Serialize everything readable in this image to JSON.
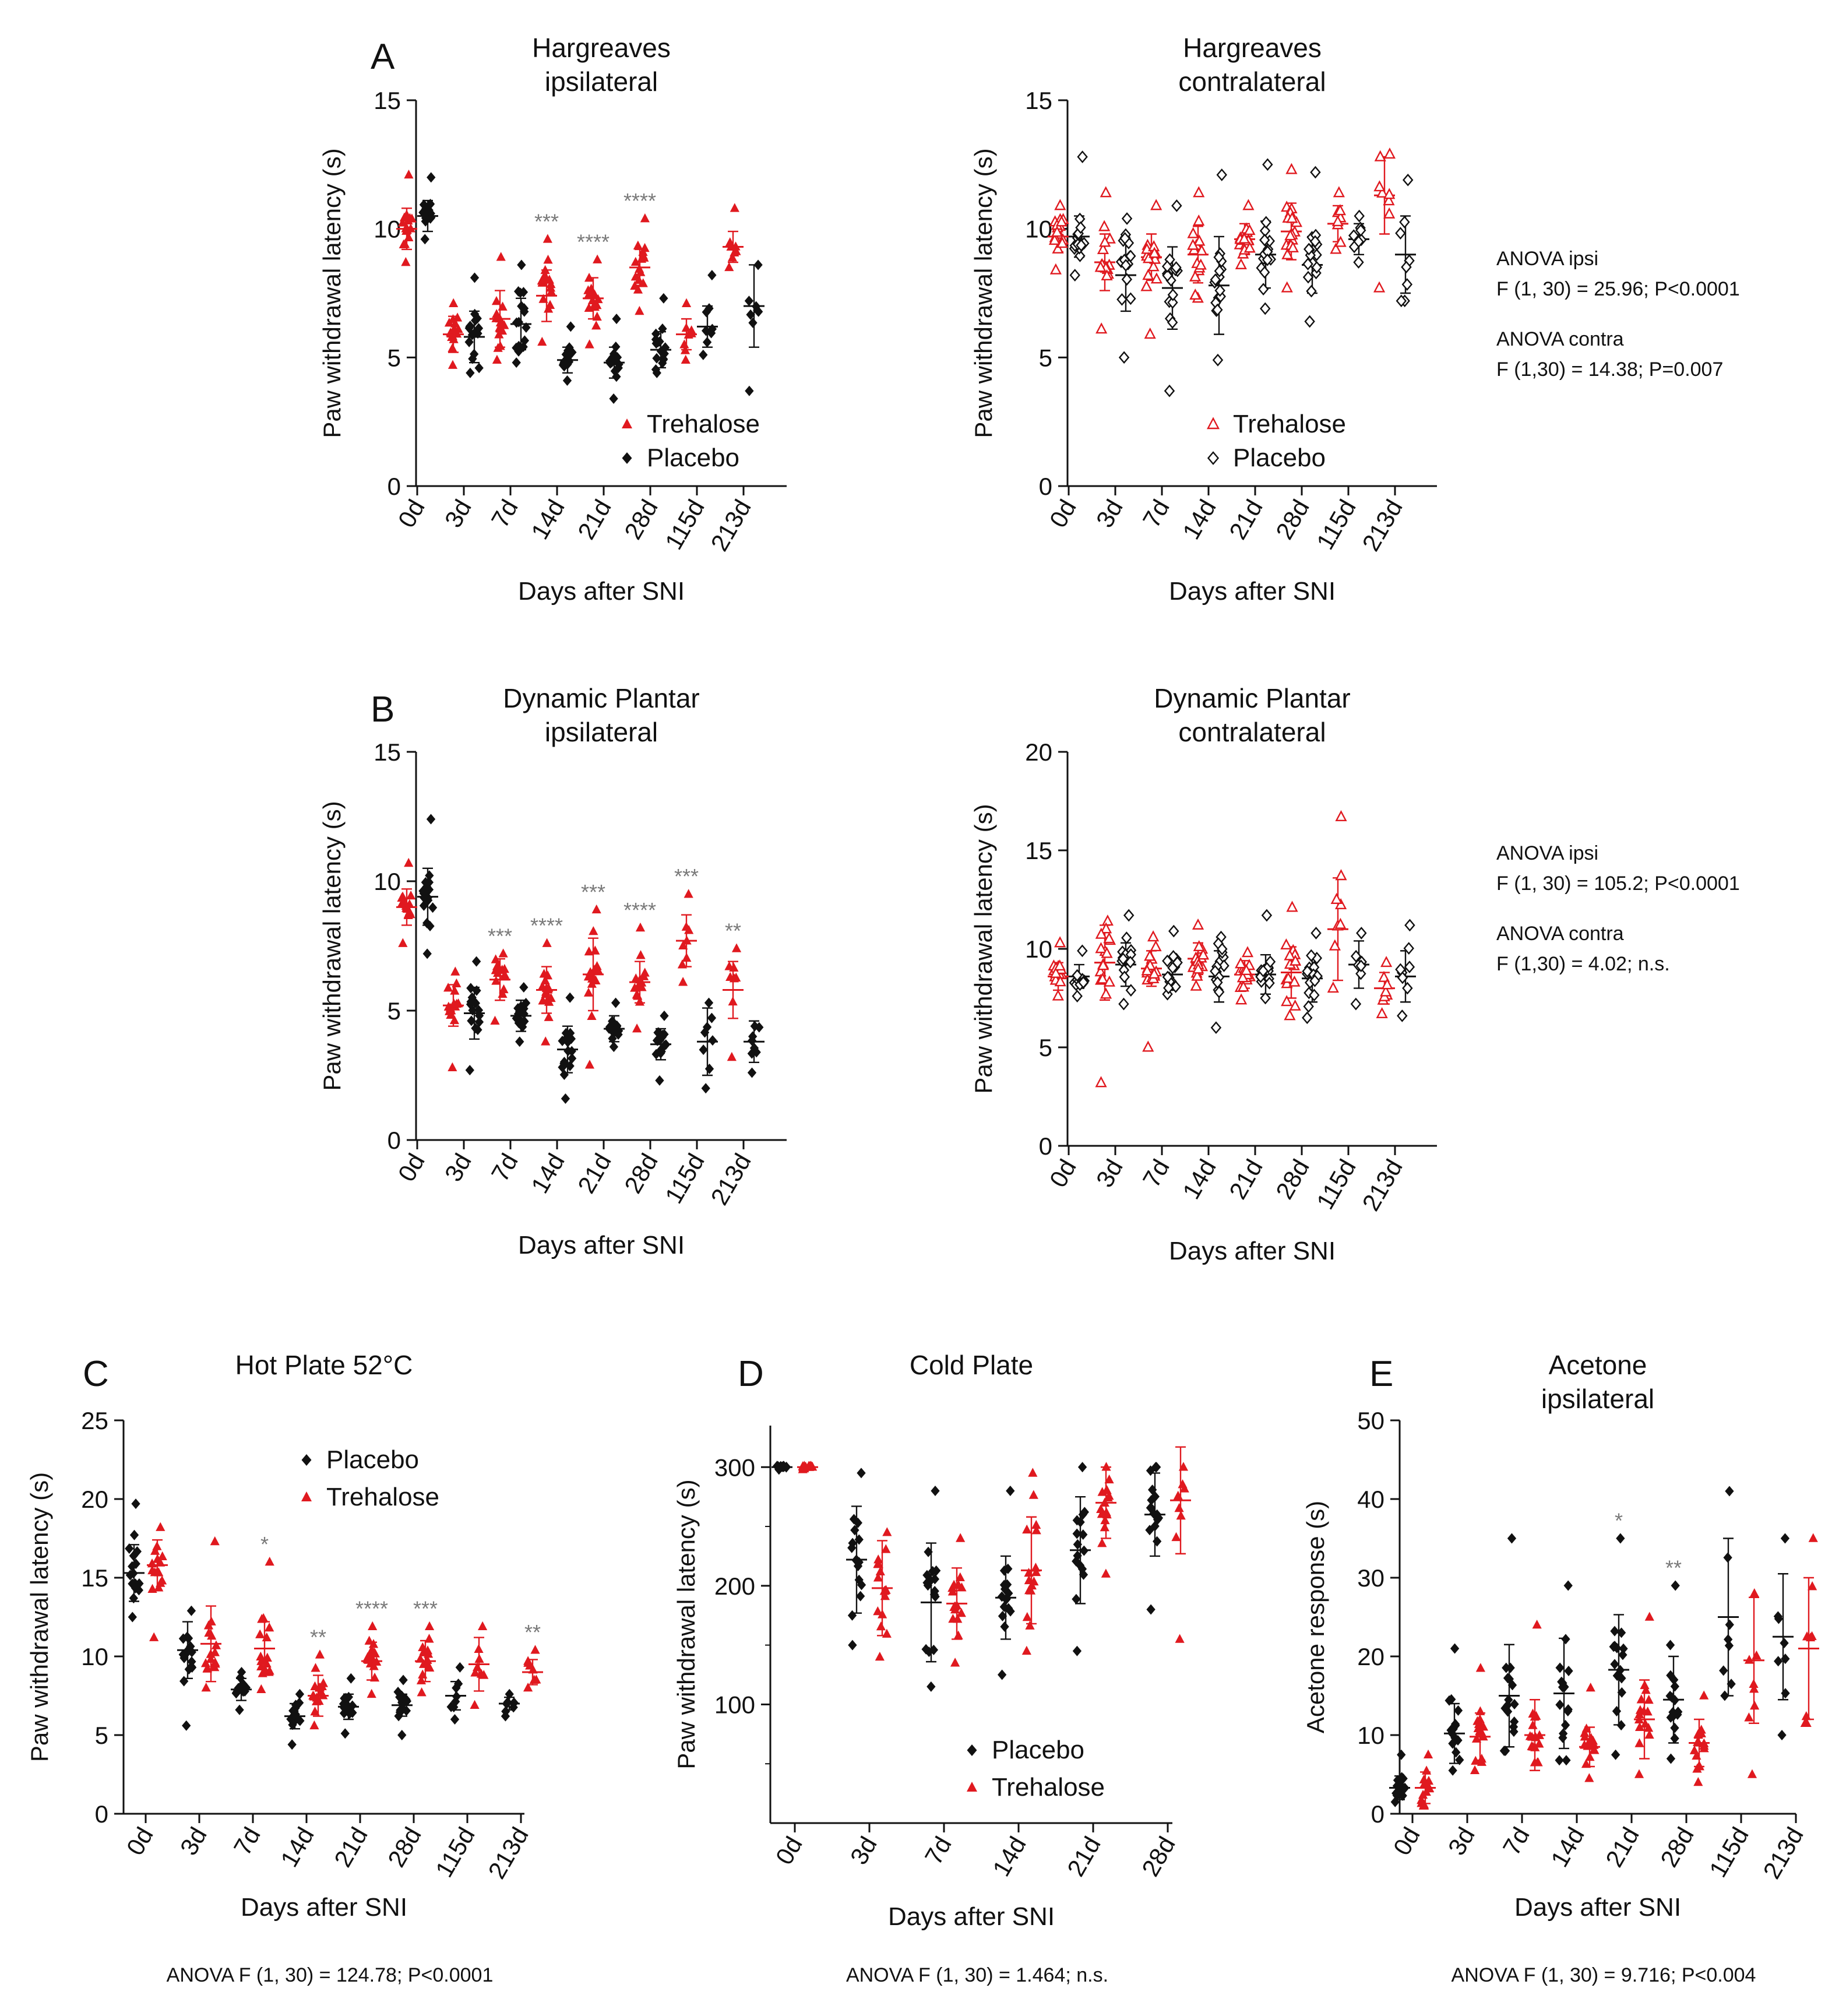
{
  "colors": {
    "trehalose": "#e0191f",
    "placebo": "#111111",
    "significance": "#7a7a7a"
  },
  "shared": {
    "xlabel": "Days after SNI"
  },
  "notes": {
    "A": {
      "ipsi_title": "ANOVA ipsi",
      "ipsi_stat": "F (1, 30) = 25.96; P<0.0001",
      "contra_title": "ANOVA contra",
      "contra_stat": "F (1,30) = 14.38; P=0.007"
    },
    "B": {
      "ipsi_title": "ANOVA ipsi",
      "ipsi_stat": "F (1, 30) = 105.2; P<0.0001",
      "contra_title": "ANOVA contra",
      "contra_stat": "F (1,30) = 4.02; n.s."
    }
  },
  "chart_data": [
    {
      "id": "A1",
      "panel_letter": "A",
      "type": "scatter",
      "title": "Hargreaves",
      "subtitle": "ipsilateral",
      "xlabel": "Days after SNI",
      "ylabel": "Paw withdrawal latency (s)",
      "ylim": [
        0,
        15
      ],
      "yticks": [
        0,
        5,
        10,
        15
      ],
      "categories": [
        "0d",
        "3d",
        "7d",
        "14d",
        "21d",
        "28d",
        "115d",
        "213d"
      ],
      "legend": {
        "entries": [
          "Trehalose",
          "Placebo"
        ],
        "placement": "lower-right"
      },
      "series": [
        {
          "name": "Trehalose",
          "marker": "filled-triangle",
          "mean": [
            10.0,
            5.9,
            6.5,
            7.4,
            7.3,
            8.5,
            5.9,
            9.3
          ],
          "sd": [
            0.8,
            0.7,
            1.1,
            1.0,
            0.8,
            0.7,
            0.6,
            0.6
          ],
          "n": [
            16,
            16,
            16,
            16,
            16,
            16,
            8,
            8
          ],
          "min": [
            8.7,
            4.7,
            4.9,
            5.6,
            5.5,
            6.8,
            4.9,
            8.5
          ],
          "max": [
            12.1,
            7.1,
            8.9,
            9.6,
            8.8,
            10.4,
            7.1,
            10.8
          ],
          "significance": [
            "",
            "",
            "",
            "***",
            "****",
            "****",
            "",
            ""
          ]
        },
        {
          "name": "Placebo",
          "marker": "filled-diamond",
          "mean": [
            10.5,
            5.8,
            6.3,
            4.9,
            4.8,
            5.3,
            6.2,
            7.0
          ],
          "sd": [
            0.6,
            1.0,
            1.0,
            0.5,
            0.6,
            0.7,
            0.8,
            1.6
          ],
          "n": [
            16,
            16,
            16,
            16,
            16,
            16,
            8,
            8
          ],
          "min": [
            9.6,
            4.4,
            4.8,
            4.1,
            3.4,
            4.4,
            5.1,
            3.7
          ],
          "max": [
            12.0,
            8.1,
            8.6,
            6.2,
            6.5,
            7.3,
            8.2,
            8.6
          ],
          "significance": [
            "",
            "",
            "",
            "",
            "",
            "",
            "",
            ""
          ]
        }
      ]
    },
    {
      "id": "A2",
      "type": "scatter",
      "title": "Hargreaves",
      "subtitle": "contralateral",
      "xlabel": "Days after SNI",
      "ylabel": "Paw withdrawal latency (s)",
      "ylim": [
        0,
        15
      ],
      "yticks": [
        0,
        5,
        10,
        15
      ],
      "categories": [
        "0d",
        "3d",
        "7d",
        "14d",
        "21d",
        "28d",
        "115d",
        "213d"
      ],
      "legend": {
        "entries": [
          "Trehalose",
          "Placebo"
        ],
        "placement": "lower-center"
      },
      "series": [
        {
          "name": "Trehalose",
          "marker": "open-triangle",
          "mean": [
            9.7,
            8.7,
            8.9,
            9.0,
            9.6,
            9.9,
            10.2,
            11.3
          ],
          "sd": [
            0.6,
            1.1,
            0.9,
            1.1,
            0.6,
            1.1,
            0.7,
            1.5
          ],
          "n": [
            16,
            16,
            16,
            16,
            16,
            16,
            8,
            8
          ],
          "min": [
            8.4,
            6.1,
            5.9,
            7.3,
            8.6,
            7.7,
            9.2,
            7.7
          ],
          "max": [
            10.9,
            11.4,
            10.9,
            11.4,
            10.9,
            12.3,
            11.4,
            12.9
          ],
          "significance": [
            "",
            "",
            "",
            "",
            "",
            "",
            "",
            ""
          ]
        },
        {
          "name": "Placebo",
          "marker": "open-diamond",
          "mean": [
            9.7,
            8.2,
            7.7,
            7.8,
            9.0,
            8.6,
            9.6,
            9.0
          ],
          "sd": [
            0.8,
            1.4,
            1.6,
            1.9,
            1.3,
            1.1,
            0.6,
            1.5
          ],
          "n": [
            16,
            16,
            16,
            16,
            16,
            16,
            8,
            8
          ],
          "min": [
            8.2,
            5.0,
            3.7,
            4.9,
            6.9,
            6.4,
            8.7,
            7.2
          ],
          "max": [
            12.8,
            10.4,
            10.9,
            12.1,
            12.5,
            12.2,
            10.5,
            11.9
          ],
          "significance": [
            "",
            "",
            "",
            "",
            "",
            "",
            "",
            ""
          ]
        }
      ]
    },
    {
      "id": "B1",
      "panel_letter": "B",
      "type": "scatter",
      "title": "Dynamic Plantar",
      "subtitle": "ipsilateral",
      "xlabel": "Days after SNI",
      "ylabel": "Paw withdrawal latency (s)",
      "ylim": [
        0,
        15
      ],
      "yticks": [
        0,
        5,
        10,
        15
      ],
      "categories": [
        "0d",
        "3d",
        "7d",
        "14d",
        "21d",
        "28d",
        "115d",
        "213d"
      ],
      "legend": null,
      "series": [
        {
          "name": "Trehalose",
          "marker": "filled-triangle",
          "mean": [
            9.0,
            5.2,
            6.2,
            5.8,
            6.4,
            6.1,
            7.7,
            5.8
          ],
          "sd": [
            0.7,
            0.8,
            0.8,
            0.9,
            1.4,
            0.8,
            1.0,
            1.1
          ],
          "n": [
            16,
            16,
            16,
            16,
            16,
            16,
            8,
            8
          ],
          "min": [
            7.6,
            2.8,
            4.6,
            3.8,
            2.9,
            4.3,
            6.1,
            3.2
          ],
          "max": [
            10.7,
            6.5,
            7.2,
            7.6,
            8.9,
            8.2,
            9.5,
            7.4
          ],
          "significance": [
            "",
            "",
            "***",
            "****",
            "***",
            "****",
            "***",
            "**"
          ]
        },
        {
          "name": "Placebo",
          "marker": "filled-diamond",
          "mean": [
            9.4,
            4.9,
            4.8,
            3.5,
            4.3,
            3.7,
            3.8,
            3.8
          ],
          "sd": [
            1.1,
            1.0,
            0.6,
            0.9,
            0.5,
            0.6,
            1.3,
            0.8
          ],
          "n": [
            16,
            16,
            16,
            16,
            16,
            16,
            8,
            8
          ],
          "min": [
            7.2,
            2.7,
            3.8,
            1.6,
            3.6,
            2.3,
            2.0,
            2.6
          ],
          "max": [
            12.4,
            6.9,
            5.9,
            5.5,
            5.3,
            4.8,
            5.3,
            4.4
          ],
          "significance": [
            "",
            "",
            "",
            "",
            "",
            "",
            "",
            ""
          ]
        }
      ]
    },
    {
      "id": "B2",
      "type": "scatter",
      "title": "Dynamic Plantar",
      "subtitle": "contralateral",
      "xlabel": "Days after SNI",
      "ylabel": "Paw withdrawal latency (s)",
      "ylim": [
        0,
        20
      ],
      "yticks": [
        0,
        5,
        10,
        15,
        20
      ],
      "categories": [
        "0d",
        "3d",
        "7d",
        "14d",
        "21d",
        "28d",
        "115d",
        "213d"
      ],
      "legend": null,
      "series": [
        {
          "name": "Trehalose",
          "marker": "open-triangle",
          "mean": [
            8.6,
            9.3,
            9.0,
            9.5,
            8.7,
            8.8,
            11.0,
            8.0
          ],
          "sd": [
            0.7,
            1.9,
            0.9,
            0.8,
            0.7,
            1.3,
            2.6,
            0.8
          ],
          "n": [
            16,
            16,
            16,
            16,
            16,
            16,
            8,
            8
          ],
          "min": [
            7.6,
            3.2,
            5.0,
            8.1,
            7.4,
            6.6,
            8.0,
            6.7
          ],
          "max": [
            10.3,
            11.4,
            10.6,
            11.2,
            9.8,
            12.1,
            16.7,
            9.3
          ],
          "significance": [
            "",
            "",
            "",
            "",
            "",
            "",
            "",
            ""
          ]
        },
        {
          "name": "Placebo",
          "marker": "open-diamond",
          "mean": [
            8.6,
            9.2,
            8.7,
            8.6,
            8.7,
            8.5,
            9.2,
            8.6
          ],
          "sd": [
            0.6,
            1.1,
            0.8,
            1.3,
            1.0,
            1.2,
            1.2,
            1.3
          ],
          "n": [
            16,
            16,
            16,
            16,
            16,
            16,
            8,
            8
          ],
          "min": [
            7.6,
            7.2,
            7.7,
            6.0,
            7.5,
            6.5,
            7.2,
            6.6
          ],
          "max": [
            9.9,
            11.7,
            10.9,
            10.6,
            11.7,
            10.8,
            10.8,
            11.2
          ],
          "significance": [
            "",
            "",
            "",
            "",
            "",
            "",
            "",
            ""
          ]
        }
      ]
    },
    {
      "id": "C",
      "panel_letter": "C",
      "type": "scatter",
      "title": "Hot Plate 52°C",
      "subtitle": "",
      "xlabel": "Days after SNI",
      "ylabel": "Paw withdrawal latency (s)",
      "ylim": [
        0,
        25
      ],
      "yticks": [
        0,
        5,
        10,
        15,
        20,
        25
      ],
      "categories": [
        "0d",
        "3d",
        "7d",
        "14d",
        "21d",
        "28d",
        "115d",
        "213d"
      ],
      "legend": {
        "entries": [
          "Placebo",
          "Trehalose"
        ],
        "placement": "top-right"
      },
      "anova": "ANOVA F (1, 30) = 124.78; P<0.0001",
      "series": [
        {
          "name": "Placebo",
          "marker": "filled-diamond",
          "mean": [
            15.3,
            10.4,
            7.9,
            6.2,
            6.8,
            6.9,
            7.5,
            7.0
          ],
          "sd": [
            1.8,
            1.8,
            0.7,
            0.8,
            0.8,
            0.7,
            0.9,
            0.4
          ],
          "n": [
            16,
            16,
            16,
            16,
            16,
            16,
            8,
            8
          ],
          "min": [
            12.5,
            5.6,
            6.6,
            4.4,
            5.1,
            5.0,
            6.0,
            6.2
          ],
          "max": [
            19.7,
            12.9,
            9.0,
            7.6,
            8.6,
            8.5,
            9.3,
            7.6
          ],
          "significance": [
            "",
            "",
            "",
            "",
            "",
            "",
            "",
            ""
          ]
        },
        {
          "name": "Trehalose",
          "marker": "filled-triangle",
          "mean": [
            15.8,
            10.8,
            10.5,
            7.5,
            9.7,
            9.7,
            9.5,
            9.0
          ],
          "sd": [
            1.6,
            2.4,
            1.7,
            1.3,
            1.2,
            1.3,
            1.7,
            0.8
          ],
          "n": [
            16,
            16,
            16,
            16,
            16,
            16,
            8,
            8
          ],
          "min": [
            11.2,
            8.0,
            7.9,
            5.6,
            7.6,
            7.7,
            6.9,
            8.0
          ],
          "max": [
            18.2,
            17.3,
            16.0,
            10.1,
            11.9,
            11.9,
            11.9,
            10.4
          ],
          "significance": [
            "",
            "",
            "*",
            "**",
            "****",
            "***",
            "",
            "**"
          ]
        }
      ]
    },
    {
      "id": "D",
      "panel_letter": "D",
      "type": "scatter",
      "title": "Cold Plate",
      "subtitle": "",
      "xlabel": "Days after SNI",
      "ylabel": "Paw withdrawal latency (s)",
      "ylim": [
        0,
        335
      ],
      "yticks": [
        100,
        200,
        300
      ],
      "categories": [
        "0d",
        "3d",
        "7d",
        "14d",
        "21d",
        "28d"
      ],
      "legend": {
        "entries": [
          "Placebo",
          "Trehalose"
        ],
        "placement": "lower-center"
      },
      "anova": "ANOVA F (1, 30) = 1.464; n.s.",
      "series": [
        {
          "name": "Placebo",
          "marker": "filled-diamond",
          "mean": [
            300,
            222,
            186,
            190,
            230,
            260
          ],
          "sd": [
            1,
            45,
            50,
            35,
            45,
            35
          ],
          "n": [
            16,
            16,
            16,
            16,
            16,
            16
          ],
          "min": [
            298,
            150,
            115,
            125,
            145,
            180
          ],
          "max": [
            301,
            295,
            280,
            280,
            300,
            300
          ],
          "significance": [
            "",
            "",
            "",
            "",
            "",
            ""
          ]
        },
        {
          "name": "Trehalose",
          "marker": "filled-triangle",
          "mean": [
            300,
            198,
            185,
            213,
            270,
            272
          ],
          "sd": [
            1,
            40,
            30,
            45,
            30,
            45
          ],
          "n": [
            16,
            16,
            16,
            16,
            16,
            8
          ],
          "min": [
            298,
            140,
            135,
            145,
            210,
            155
          ],
          "max": [
            301,
            245,
            240,
            295,
            300,
            300
          ],
          "significance": [
            "",
            "",
            "",
            "",
            "",
            ""
          ]
        }
      ]
    },
    {
      "id": "E",
      "panel_letter": "E",
      "type": "scatter",
      "title": "Acetone",
      "subtitle": "ipsilateral",
      "xlabel": "Days after SNI",
      "ylabel": "Acetone response (s)",
      "ylim": [
        0,
        50
      ],
      "yticks": [
        0,
        10,
        20,
        30,
        40,
        50
      ],
      "categories": [
        "0d",
        "3d",
        "7d",
        "14d",
        "21d",
        "28d",
        "115d",
        "213d"
      ],
      "legend": null,
      "anova": "ANOVA F (1, 30) = 9.716; P<0.004",
      "series": [
        {
          "name": "Placebo",
          "marker": "filled-diamond",
          "mean": [
            3.3,
            10.2,
            15.0,
            15.3,
            18.3,
            14.5,
            25.0,
            22.5
          ],
          "sd": [
            1.5,
            3.8,
            6.5,
            7.0,
            7.0,
            5.5,
            10.0,
            8.0
          ],
          "n": [
            16,
            16,
            16,
            16,
            16,
            16,
            8,
            8
          ],
          "min": [
            1.5,
            5.5,
            8.0,
            6.8,
            7.5,
            7.0,
            15.0,
            10.0
          ],
          "max": [
            7.5,
            21.0,
            35.0,
            29.0,
            35.0,
            29.0,
            41.0,
            35.0
          ],
          "significance": [
            "",
            "",
            "",
            "",
            "*",
            "**",
            "",
            ""
          ]
        },
        {
          "name": "Trehalose",
          "marker": "filled-triangle",
          "mean": [
            3.3,
            9.8,
            10.0,
            8.5,
            12.0,
            9.0,
            19.5,
            21.0
          ],
          "sd": [
            2.0,
            3.0,
            4.5,
            2.5,
            5.0,
            3.0,
            8.0,
            9.0
          ],
          "n": [
            16,
            16,
            16,
            16,
            16,
            16,
            8,
            8
          ],
          "min": [
            1.0,
            5.5,
            6.5,
            4.5,
            5.0,
            4.0,
            5.0,
            11.5
          ],
          "max": [
            7.5,
            18.5,
            24.0,
            16.0,
            25.0,
            15.0,
            28.0,
            35.0
          ],
          "significance": [
            "",
            "",
            "",
            "",
            "",
            "",
            "",
            ""
          ]
        }
      ]
    }
  ]
}
